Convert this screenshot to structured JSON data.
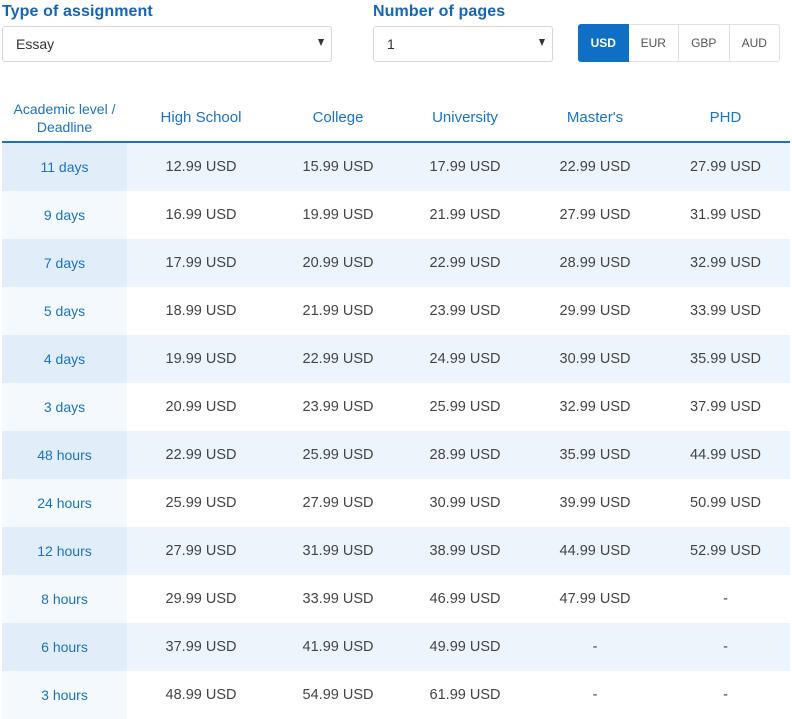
{
  "filters": {
    "assignment_label": "Type of assignment",
    "assignment_value": "Essay",
    "pages_label": "Number of pages",
    "pages_value": "1"
  },
  "currencies": [
    {
      "label": "USD",
      "active": true
    },
    {
      "label": "EUR",
      "active": false
    },
    {
      "label": "GBP",
      "active": false
    },
    {
      "label": "AUD",
      "active": false
    }
  ],
  "table": {
    "headers": [
      "Academic level / Deadline",
      "High School",
      "College",
      "University",
      "Master's",
      "PHD"
    ],
    "rows": [
      {
        "deadline": "11 days",
        "prices": [
          "12.99 USD",
          "15.99 USD",
          "17.99 USD",
          "22.99 USD",
          "27.99 USD"
        ]
      },
      {
        "deadline": "9 days",
        "prices": [
          "16.99 USD",
          "19.99 USD",
          "21.99 USD",
          "27.99 USD",
          "31.99 USD"
        ]
      },
      {
        "deadline": "7 days",
        "prices": [
          "17.99 USD",
          "20.99 USD",
          "22.99 USD",
          "28.99 USD",
          "32.99 USD"
        ]
      },
      {
        "deadline": "5 days",
        "prices": [
          "18.99 USD",
          "21.99 USD",
          "23.99 USD",
          "29.99 USD",
          "33.99 USD"
        ]
      },
      {
        "deadline": "4 days",
        "prices": [
          "19.99 USD",
          "22.99 USD",
          "24.99 USD",
          "30.99 USD",
          "35.99 USD"
        ]
      },
      {
        "deadline": "3 days",
        "prices": [
          "20.99 USD",
          "23.99 USD",
          "25.99 USD",
          "32.99 USD",
          "37.99 USD"
        ]
      },
      {
        "deadline": "48 hours",
        "prices": [
          "22.99 USD",
          "25.99 USD",
          "28.99 USD",
          "35.99 USD",
          "44.99 USD"
        ]
      },
      {
        "deadline": "24 hours",
        "prices": [
          "25.99 USD",
          "27.99 USD",
          "30.99 USD",
          "39.99 USD",
          "50.99 USD"
        ]
      },
      {
        "deadline": "12 hours",
        "prices": [
          "27.99 USD",
          "31.99 USD",
          "38.99 USD",
          "44.99 USD",
          "52.99 USD"
        ]
      },
      {
        "deadline": "8 hours",
        "prices": [
          "29.99 USD",
          "33.99 USD",
          "46.99 USD",
          "47.99 USD",
          "-"
        ]
      },
      {
        "deadline": "6 hours",
        "prices": [
          "37.99 USD",
          "41.99 USD",
          "49.99 USD",
          "-",
          "-"
        ]
      },
      {
        "deadline": "3 hours",
        "prices": [
          "48.99 USD",
          "54.99 USD",
          "61.99 USD",
          "-",
          "-"
        ]
      }
    ]
  }
}
